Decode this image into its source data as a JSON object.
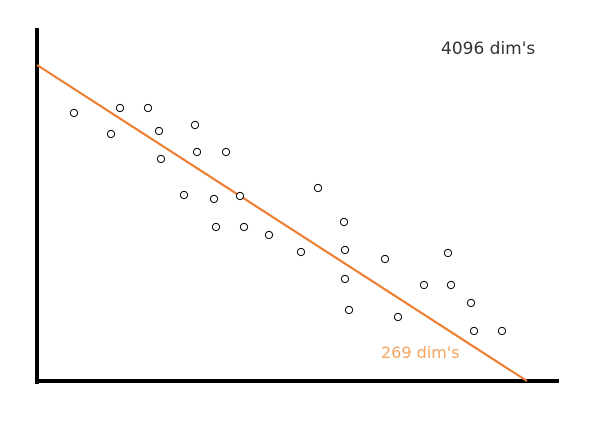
{
  "chart_data": {
    "type": "scatter",
    "title": "",
    "xlabel": "",
    "ylabel": "",
    "grid": false,
    "annotations": {
      "top_right": "4096 dim's",
      "line_label": "269 dim's"
    },
    "colors": {
      "axes": "#000000",
      "points": "#000000",
      "trend_line": "#ed7d31",
      "line_label": "#f4a460",
      "top_label": "#333333"
    },
    "xlim": [
      0,
      520
    ],
    "ylim": [
      0,
      320
    ],
    "points": [
      {
        "x": 37,
        "y": 268
      },
      {
        "x": 74,
        "y": 247
      },
      {
        "x": 83,
        "y": 273
      },
      {
        "x": 111,
        "y": 273
      },
      {
        "x": 122,
        "y": 250
      },
      {
        "x": 124,
        "y": 222
      },
      {
        "x": 147,
        "y": 186
      },
      {
        "x": 158,
        "y": 256
      },
      {
        "x": 160,
        "y": 229
      },
      {
        "x": 177,
        "y": 182
      },
      {
        "x": 179,
        "y": 154
      },
      {
        "x": 189,
        "y": 229
      },
      {
        "x": 203,
        "y": 185
      },
      {
        "x": 207,
        "y": 154
      },
      {
        "x": 232,
        "y": 146
      },
      {
        "x": 264,
        "y": 129
      },
      {
        "x": 281,
        "y": 193
      },
      {
        "x": 307,
        "y": 159
      },
      {
        "x": 308,
        "y": 131
      },
      {
        "x": 308,
        "y": 102
      },
      {
        "x": 312,
        "y": 71
      },
      {
        "x": 348,
        "y": 122
      },
      {
        "x": 361,
        "y": 64
      },
      {
        "x": 387,
        "y": 96
      },
      {
        "x": 411,
        "y": 128
      },
      {
        "x": 414,
        "y": 96
      },
      {
        "x": 434,
        "y": 78
      },
      {
        "x": 437,
        "y": 50
      },
      {
        "x": 465,
        "y": 50
      }
    ],
    "trend_line": {
      "start": {
        "x": 0,
        "y": 316
      },
      "end": {
        "x": 490,
        "y": 0
      }
    }
  }
}
